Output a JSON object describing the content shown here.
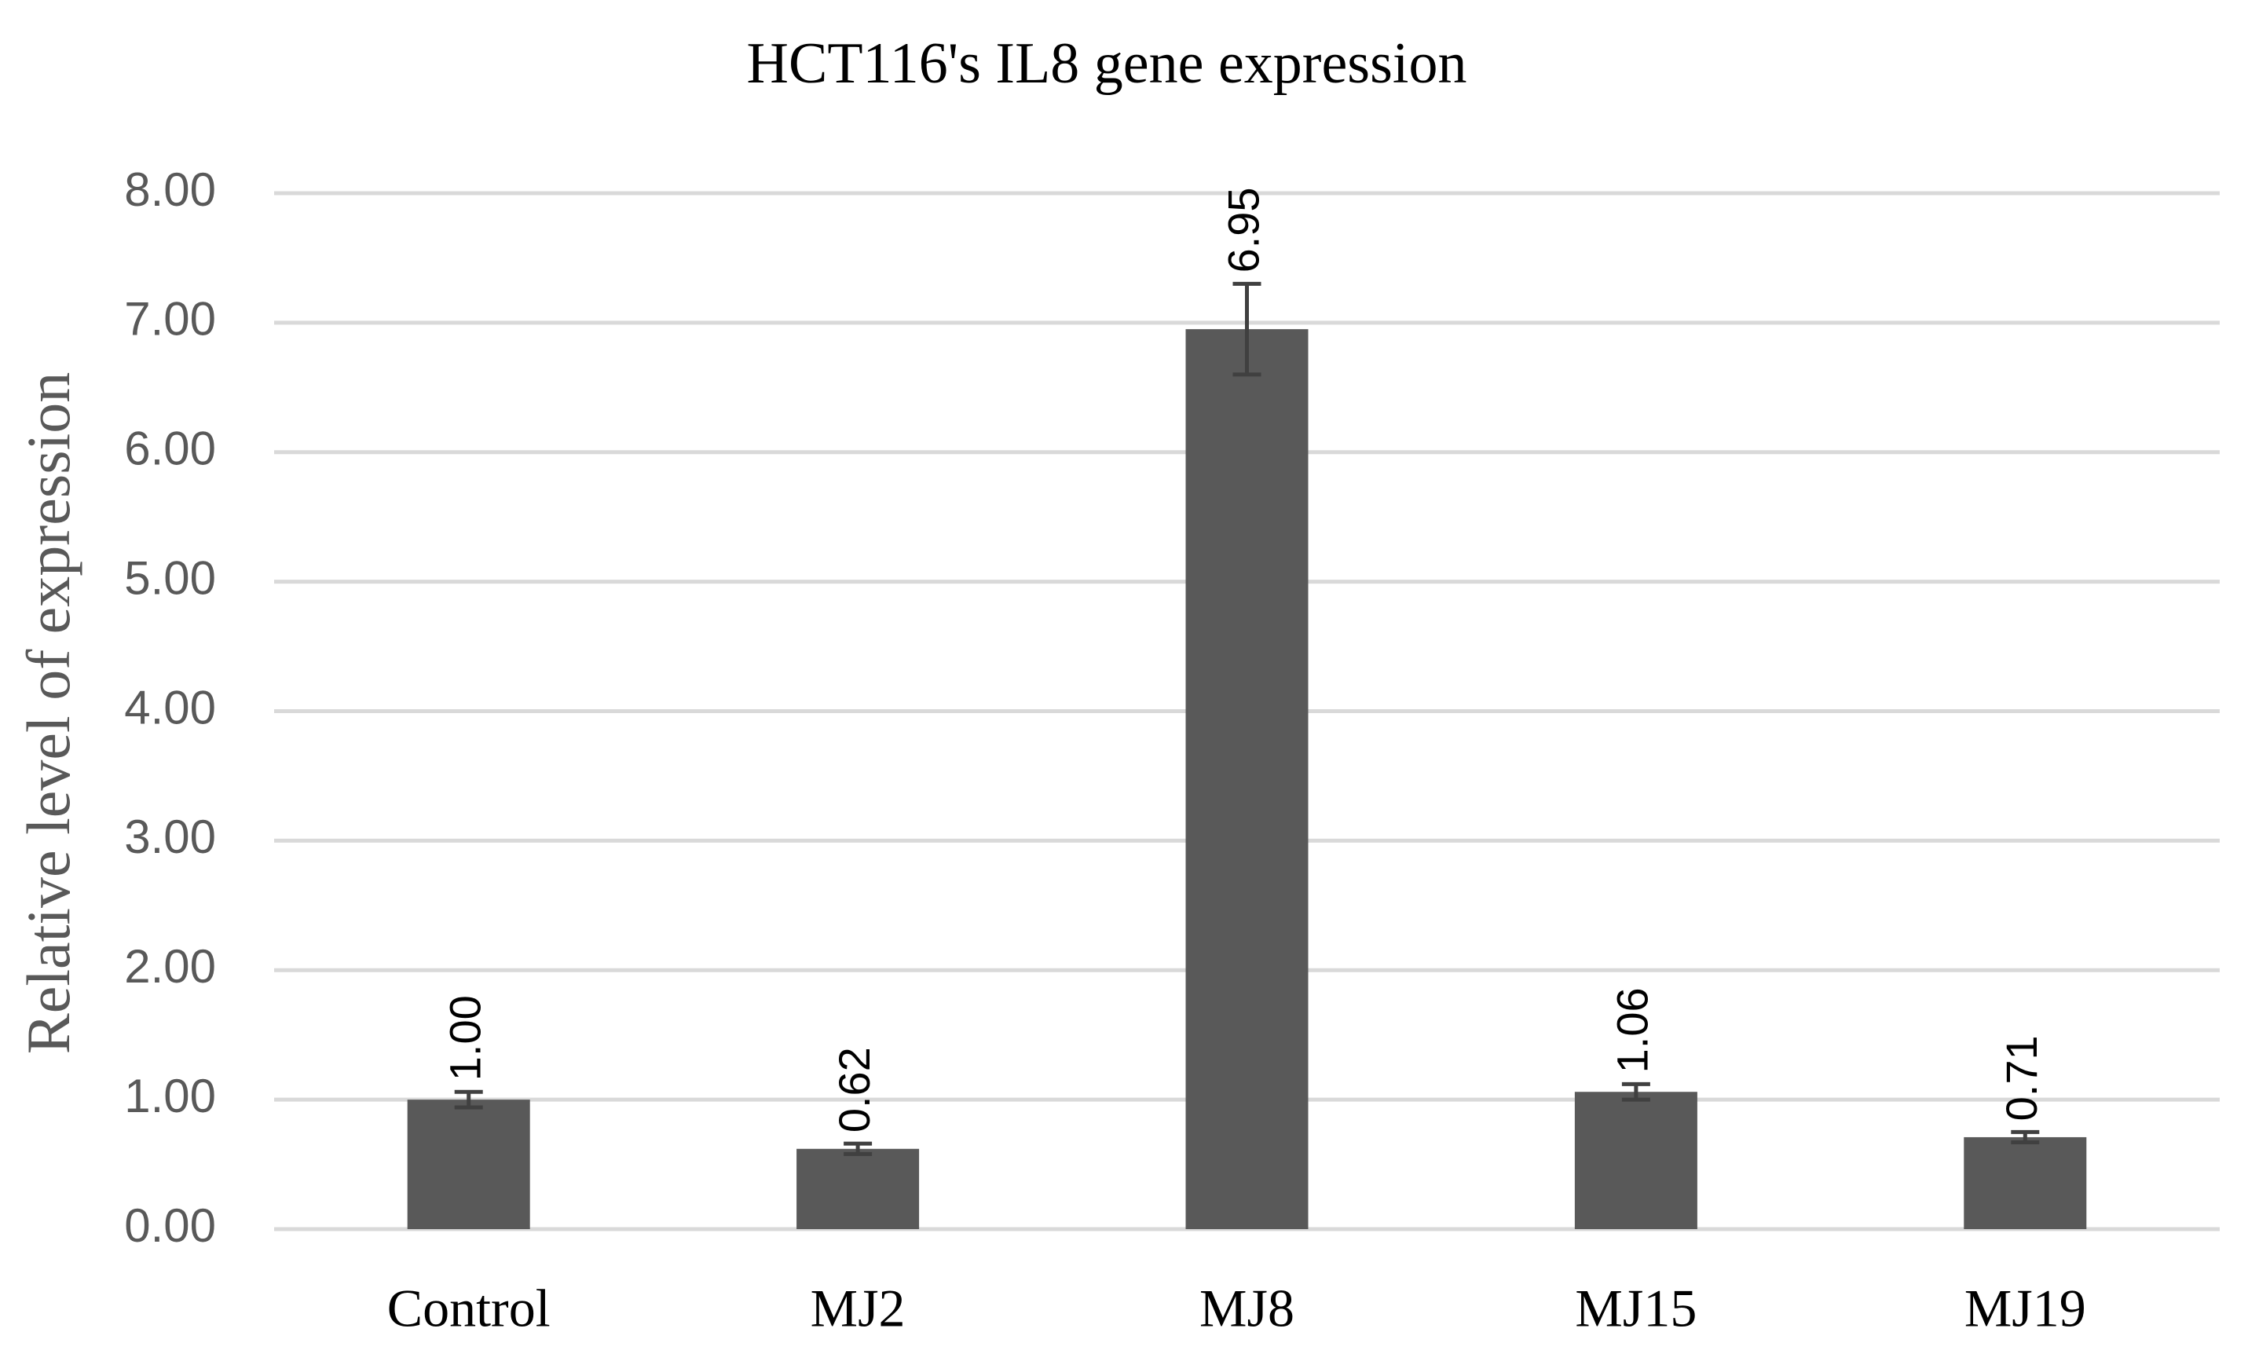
{
  "chart_data": {
    "type": "bar",
    "title": "HCT116's IL8 gene expression",
    "y_label": "Relative level of expression",
    "categories": [
      "Control",
      "MJ2",
      "MJ8",
      "MJ15",
      "MJ19"
    ],
    "values": [
      1.0,
      0.62,
      6.95,
      1.06,
      0.71
    ],
    "value_labels": [
      "1.00",
      "0.62",
      "6.95",
      "1.06",
      "0.71"
    ],
    "errors": [
      0.06,
      0.04,
      0.35,
      0.06,
      0.04
    ],
    "color": "#595959",
    "error_color": "#404040",
    "ylim": [
      0,
      8
    ],
    "yticks": [
      {
        "value": 0,
        "label": "0.00"
      },
      {
        "value": 1,
        "label": "1.00"
      },
      {
        "value": 2,
        "label": "2.00"
      },
      {
        "value": 3,
        "label": "3.00"
      },
      {
        "value": 4,
        "label": "4.00"
      },
      {
        "value": 5,
        "label": "5.00"
      },
      {
        "value": 6,
        "label": "6.00"
      },
      {
        "value": 7,
        "label": "7.00"
      },
      {
        "value": 8,
        "label": "8.00"
      }
    ],
    "grid": true
  }
}
